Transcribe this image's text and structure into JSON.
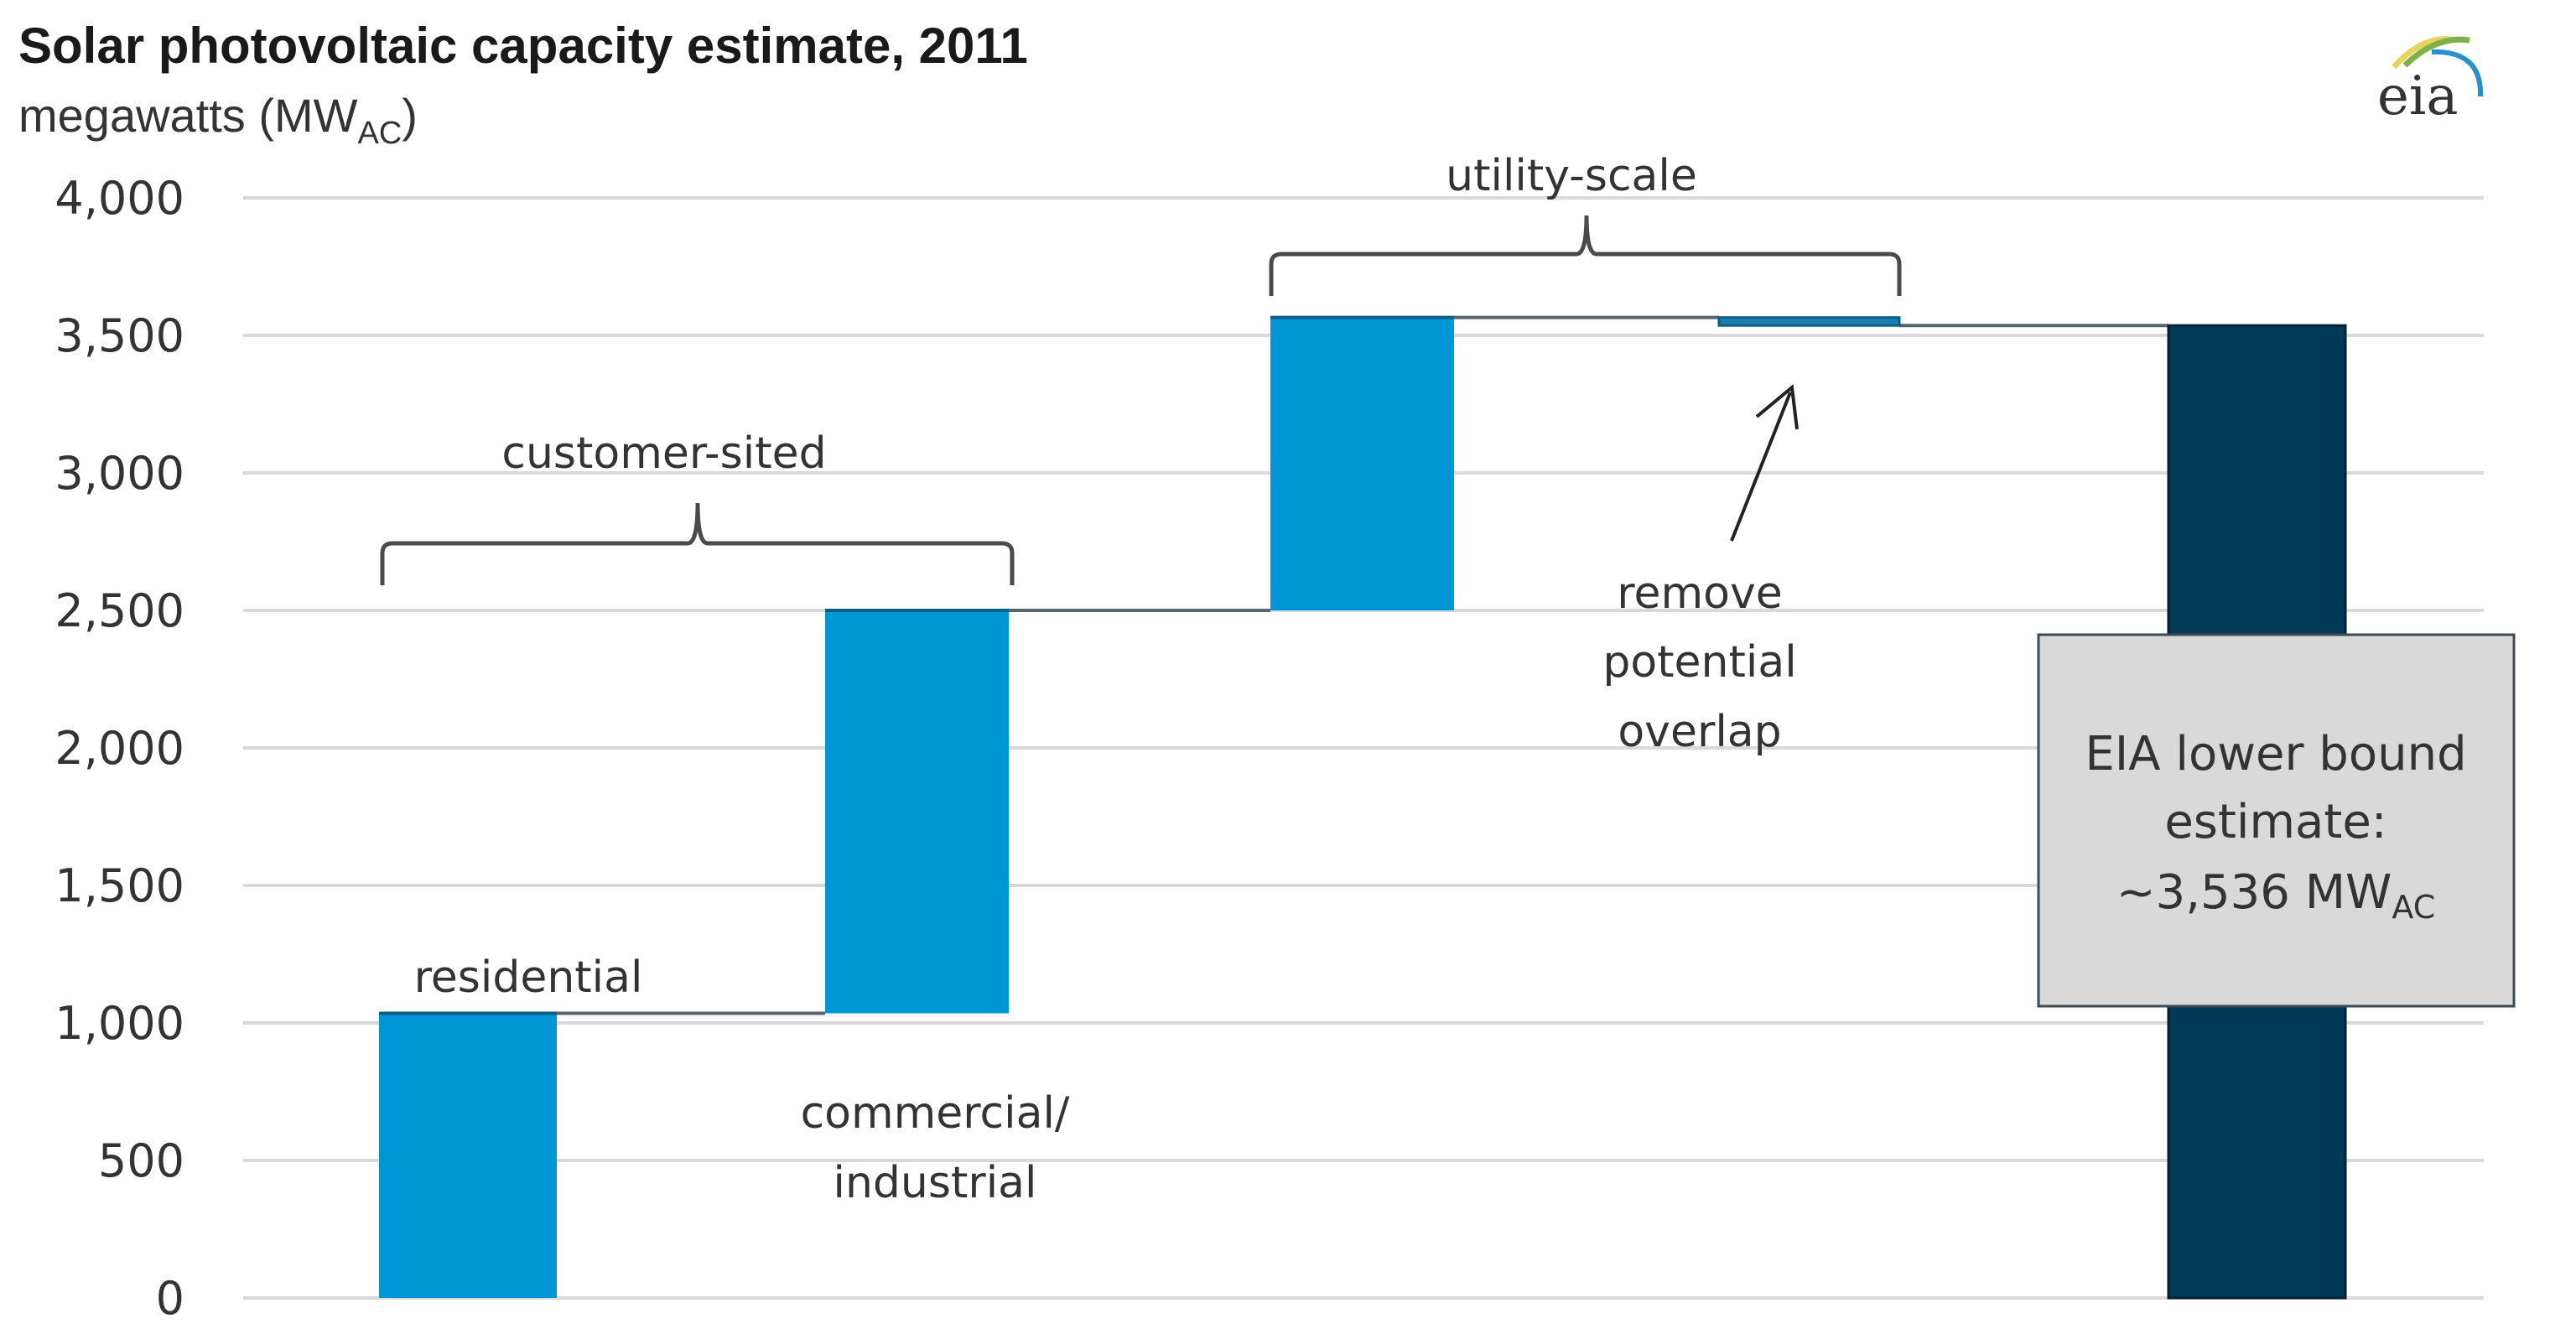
{
  "chart_data": {
    "type": "bar",
    "subtype": "waterfall",
    "title": "Solar photovoltaic capacity estimate, 2011",
    "subtitle": "megawatts (MW",
    "subtitle_sub": "AC",
    "subtitle_close": ")",
    "ylabel": "megawatts (MWAC)",
    "xlabel": "",
    "ylim": [
      0,
      4000
    ],
    "yticks": [
      0,
      500,
      1000,
      1500,
      2000,
      2500,
      3000,
      3500,
      4000
    ],
    "ytick_labels": [
      "0",
      "500",
      "1,000",
      "1,500",
      "2,000",
      "2,500",
      "3,000",
      "3,500",
      "4,000"
    ],
    "grid": true,
    "legend": null,
    "bars": [
      {
        "name": "residential",
        "start": 0,
        "end": 1035,
        "change": 1035,
        "color": "#0096d6",
        "kind": "increase"
      },
      {
        "name": "commercial/industrial",
        "start": 1035,
        "end": 2500,
        "change": 1465,
        "color": "#0096d6",
        "kind": "increase"
      },
      {
        "name": "utility-scale",
        "start": 2500,
        "end": 3565,
        "change": 1065,
        "color": "#0096d6",
        "kind": "increase"
      },
      {
        "name": "remove potential overlap",
        "start": 3565,
        "end": 3536,
        "change": -29,
        "color": "#1a7fb0",
        "kind": "decrease"
      },
      {
        "name": "EIA lower bound estimate",
        "start": 0,
        "end": 3536,
        "change": 3536,
        "color": "#003a56",
        "kind": "total"
      }
    ],
    "annotations": {
      "residential": "residential",
      "commercial_line1": "commercial/",
      "commercial_line2": "industrial",
      "customer_sited": "customer-sited",
      "utility_scale": "utility-scale",
      "overlap_line1": "remove",
      "overlap_line2": "potential",
      "overlap_line3": "overlap",
      "box_line1": "EIA lower bound",
      "box_line2": "estimate:",
      "box_line3": "~3,536 MW",
      "box_line3_sub": "AC"
    },
    "colors": {
      "increase": "#0096d6",
      "decrease": "#1a7fb0",
      "total": "#003a56",
      "connector": "#55656e",
      "grid": "#d9d9d9",
      "box_fill": "#d9d9d9",
      "box_stroke": "#3d4a52"
    }
  },
  "logo": {
    "text": "eia"
  }
}
